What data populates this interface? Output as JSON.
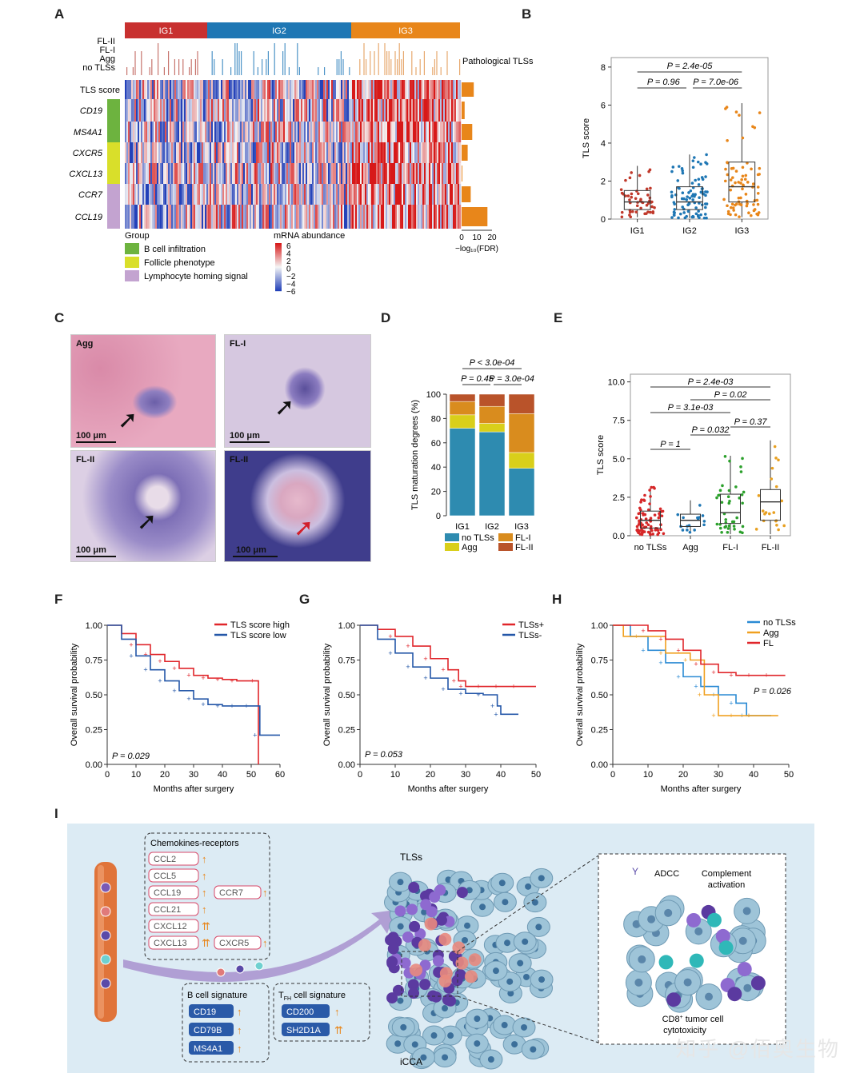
{
  "panels": {
    "A": "A",
    "B": "B",
    "C": "C",
    "D": "D",
    "E": "E",
    "F": "F",
    "G": "G",
    "H": "H",
    "I": "I"
  },
  "heatmap": {
    "groups": [
      "IG1",
      "IG2",
      "IG3"
    ],
    "group_colors": [
      "#c8302f",
      "#1f77b4",
      "#e8861a"
    ],
    "path_rows": [
      "FL-II",
      "FL-I",
      "Agg",
      "no TLSs"
    ],
    "path_label": "Pathological TLSs",
    "rows": [
      "TLS score",
      "CD19",
      "MS4A1",
      "CXCR5",
      "CXCL13",
      "CCR7",
      "CCL19"
    ],
    "fdr_values": [
      8,
      2,
      7,
      4,
      0.5,
      6,
      17
    ],
    "fdr_axis": {
      "ticks": [
        "0",
        "10",
        "20"
      ],
      "label": "−log₁₀(FDR)"
    },
    "group_legend_title": "Group",
    "group_legend": [
      {
        "label": "B cell infiltration",
        "color": "#6db33f"
      },
      {
        "label": "Follicle phenotype",
        "color": "#d9df2a"
      },
      {
        "label": "Lymphocyte homing signal",
        "color": "#c3a3d0"
      }
    ],
    "abundance_title": "mRNA abundance",
    "abundance_ticks": [
      "6",
      "4",
      "2",
      "0",
      "−2",
      "−4",
      "−6"
    ]
  },
  "panel_b": {
    "ylabel": "TLS score",
    "yticks": [
      "0",
      "2",
      "4",
      "6",
      "8"
    ],
    "groups": [
      "IG1",
      "IG2",
      "IG3"
    ],
    "colors": [
      "#c0392b",
      "#1f77b4",
      "#e8861a"
    ],
    "medians": [
      0.9,
      0.9,
      1.7
    ],
    "q1": [
      0.5,
      0.5,
      0.9
    ],
    "q3": [
      1.5,
      1.7,
      3.0
    ],
    "whisk_hi": [
      2.8,
      3.4,
      6.1
    ],
    "whisk_lo": [
      0.1,
      0.05,
      0.1
    ],
    "pvals": [
      "P = 2.4e-05",
      "P = 0.96",
      "P = 7.0e-06"
    ]
  },
  "panel_c": {
    "images": [
      {
        "label": "Agg",
        "scale": "100 μm"
      },
      {
        "label": "FL-I",
        "scale": "100 μm"
      },
      {
        "label": "FL-II",
        "scale": "100 μm"
      },
      {
        "label": "FL-II",
        "scale": "100 μm"
      }
    ]
  },
  "chart_data": [
    {
      "type": "bar",
      "title": "",
      "categories": [
        "IG1",
        "IG2",
        "IG3"
      ],
      "series": [
        {
          "name": "no TLSs",
          "values": [
            72,
            69,
            39
          ],
          "color": "#2e8bb0"
        },
        {
          "name": "Agg",
          "values": [
            11,
            7,
            13
          ],
          "color": "#d9cf1a"
        },
        {
          "name": "FL-I",
          "values": [
            11,
            14,
            32
          ],
          "color": "#d98c1e"
        },
        {
          "name": "FL-II",
          "values": [
            6,
            10,
            16
          ],
          "color": "#b9532a"
        }
      ],
      "ylabel": "TLS maturation degrees (%)",
      "yticks": [
        "0",
        "20",
        "40",
        "60",
        "80",
        "100"
      ],
      "ylim": [
        0,
        100
      ],
      "pvals": [
        "P < 3.0e-04",
        "P = 0.45",
        "P = 3.0e-04"
      ]
    },
    {
      "type": "box",
      "categories": [
        "no TLSs",
        "Agg",
        "FL-I",
        "FL-II"
      ],
      "colors": [
        "#d62728",
        "#1f77b4",
        "#2ca02c",
        "#e8a020"
      ],
      "medians": [
        1.0,
        1.0,
        1.5,
        2.2
      ],
      "q1": [
        0.5,
        0.6,
        0.8,
        1.0
      ],
      "q3": [
        1.6,
        1.4,
        2.7,
        3.0
      ],
      "whisk_hi": [
        3.2,
        2.3,
        5.2,
        6.2
      ],
      "whisk_lo": [
        0.05,
        0.2,
        0.1,
        0.1
      ],
      "ylabel": "TLS score",
      "yticks": [
        "0.0",
        "2.5",
        "5.0",
        "7.5",
        "10.0"
      ],
      "ylim": [
        0,
        10
      ],
      "pvals": [
        "P = 2.4e-03",
        "P = 0.02",
        "P = 3.1e-03",
        "P = 0.37",
        "P = 0.032",
        "P = 1"
      ]
    },
    {
      "type": "line",
      "title": "",
      "xlabel": "Months after surgery",
      "ylabel": "Overall survival probability",
      "xticks": [
        "0",
        "10",
        "20",
        "30",
        "40",
        "50",
        "60"
      ],
      "yticks": [
        "0.00",
        "0.25",
        "0.50",
        "0.75",
        "1.00"
      ],
      "xlim": [
        0,
        60
      ],
      "ylim": [
        0,
        1
      ],
      "pval": "P = 0.029",
      "series": [
        {
          "name": "TLS score high",
          "color": "#e0262b",
          "x": [
            0,
            5,
            10,
            15,
            20,
            25,
            30,
            35,
            40,
            45,
            52,
            52.5
          ],
          "y": [
            1,
            0.94,
            0.86,
            0.79,
            0.74,
            0.69,
            0.64,
            0.62,
            0.61,
            0.6,
            0.6,
            0.0
          ]
        },
        {
          "name": "TLS score low",
          "color": "#2457a8",
          "x": [
            0,
            5,
            10,
            15,
            20,
            25,
            30,
            35,
            40,
            45,
            50,
            53,
            60
          ],
          "y": [
            1,
            0.9,
            0.78,
            0.68,
            0.6,
            0.53,
            0.47,
            0.43,
            0.42,
            0.42,
            0.42,
            0.21,
            0.21
          ]
        }
      ]
    },
    {
      "type": "line",
      "xlabel": "Months after surgery",
      "ylabel": "Overall survival probability",
      "xticks": [
        "0",
        "10",
        "20",
        "30",
        "40",
        "50"
      ],
      "yticks": [
        "0.00",
        "0.25",
        "0.50",
        "0.75",
        "1.00"
      ],
      "xlim": [
        0,
        50
      ],
      "ylim": [
        0,
        1
      ],
      "pval": "P = 0.053",
      "series": [
        {
          "name": "TLSs+",
          "color": "#e0262b",
          "x": [
            0,
            5,
            10,
            15,
            20,
            25,
            28,
            30,
            35,
            40,
            45,
            50
          ],
          "y": [
            1,
            0.97,
            0.92,
            0.85,
            0.76,
            0.68,
            0.6,
            0.56,
            0.56,
            0.56,
            0.56,
            0.56
          ]
        },
        {
          "name": "TLSs-",
          "color": "#2457a8",
          "x": [
            0,
            5,
            10,
            15,
            20,
            25,
            30,
            35,
            39,
            40,
            45
          ],
          "y": [
            1,
            0.9,
            0.8,
            0.7,
            0.62,
            0.54,
            0.51,
            0.5,
            0.42,
            0.36,
            0.36
          ]
        }
      ]
    },
    {
      "type": "line",
      "xlabel": "Months after surgery",
      "ylabel": "Overall survival probability",
      "xticks": [
        "0",
        "10",
        "20",
        "30",
        "40",
        "50"
      ],
      "yticks": [
        "0.00",
        "0.25",
        "0.50",
        "0.75",
        "1.00"
      ],
      "xlim": [
        0,
        50
      ],
      "ylim": [
        0,
        1
      ],
      "pval": "P = 0.026",
      "series": [
        {
          "name": "no TLSs",
          "color": "#2a8ad4",
          "x": [
            0,
            5,
            10,
            15,
            20,
            25,
            30,
            35,
            38,
            40,
            45
          ],
          "y": [
            1,
            0.92,
            0.82,
            0.73,
            0.63,
            0.56,
            0.5,
            0.44,
            0.35,
            0.35,
            0.35
          ]
        },
        {
          "name": "Agg",
          "color": "#f0a020",
          "x": [
            0,
            3,
            8,
            15,
            22,
            26,
            30,
            35,
            40,
            47
          ],
          "y": [
            1,
            0.92,
            0.92,
            0.8,
            0.75,
            0.5,
            0.35,
            0.35,
            0.35,
            0.35
          ]
        },
        {
          "name": "FL",
          "color": "#e0262b",
          "x": [
            0,
            5,
            10,
            15,
            20,
            25,
            30,
            35,
            40,
            45,
            49
          ],
          "y": [
            1,
            1,
            0.96,
            0.9,
            0.82,
            0.72,
            0.66,
            0.64,
            0.64,
            0.64,
            0.64
          ]
        }
      ]
    }
  ],
  "panel_i": {
    "chemokines_title": "Chemokines-receptors",
    "chemokines": [
      "CCL2",
      "CCL5",
      "CCL19",
      "CCL21",
      "CXCL12",
      "CXCL13"
    ],
    "receptors": [
      "CCR7",
      "CXCR5"
    ],
    "tlss_label": "TLSs",
    "icca_label": "iCCA",
    "bcell_title": "B cell signature",
    "bcell": [
      "CD19",
      "CD79B",
      "MS4A1"
    ],
    "tfh_title_main": "T",
    "tfh_title_sub": "FH",
    "tfh_title_rest": " cell signature",
    "tfh": [
      "CD200",
      "SH2D1A"
    ],
    "adcc": "ADCC",
    "complement": "Complement",
    "complement2": "activation",
    "cd8": "CD8",
    "cd8_sup": "+",
    "cd8_rest": " tumor cell",
    "cytotox": "cytotoxicity"
  },
  "watermark": "知乎 @佰奥生物"
}
